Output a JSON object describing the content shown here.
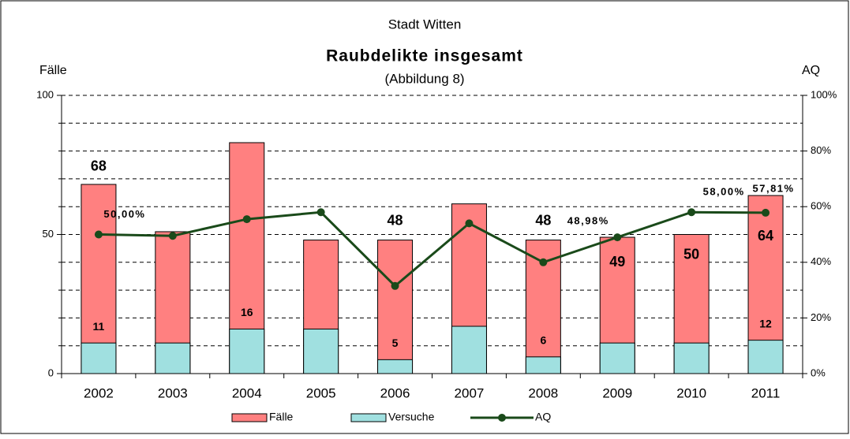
{
  "chart_data": {
    "type": "bar-line",
    "supertitle": "Stadt Witten",
    "title": "Raubdelikte insgesamt",
    "subtitle": "(Abbildung 8)",
    "ylabel": "Fälle",
    "y2label": "AQ",
    "categories": [
      "2002",
      "2003",
      "2004",
      "2005",
      "2006",
      "2007",
      "2008",
      "2009",
      "2010",
      "2011"
    ],
    "series": [
      {
        "name": "Fälle",
        "color": "#ff8080",
        "values": [
          68,
          51,
          83,
          48,
          48,
          61,
          48,
          49,
          50,
          64
        ],
        "value_labels": [
          "68",
          null,
          null,
          null,
          "48",
          null,
          "48",
          "49",
          "50",
          "64"
        ]
      },
      {
        "name": "Versuche",
        "color": "#a0e0e0",
        "values": [
          11,
          11,
          16,
          16,
          5,
          17,
          6,
          11,
          11,
          12
        ],
        "value_labels": [
          "11",
          null,
          "16",
          null,
          "5",
          null,
          "6",
          null,
          null,
          "12"
        ]
      },
      {
        "name": "AQ",
        "color": "#1a4a1a",
        "axis": "y2",
        "values": [
          50,
          49.5,
          55.5,
          58,
          31.5,
          54,
          40,
          48.98,
          58,
          57.81
        ],
        "value_labels": [
          "50,00%",
          null,
          null,
          null,
          null,
          null,
          null,
          "48,98%",
          "58,00%",
          "57,81%"
        ]
      }
    ],
    "overlap": true,
    "ylim": [
      0,
      100
    ],
    "yticks": [
      0,
      50,
      100
    ],
    "ygrid": [
      10,
      20,
      30,
      40,
      50,
      60,
      70,
      80,
      90
    ],
    "y2lim": [
      0,
      100
    ],
    "y2ticks": [
      {
        "value": 0,
        "label": "0%"
      },
      {
        "value": 20,
        "label": "20%"
      },
      {
        "value": 40,
        "label": "40%"
      },
      {
        "value": 60,
        "label": "60%"
      },
      {
        "value": 80,
        "label": "80%"
      },
      {
        "value": 100,
        "label": "100%"
      }
    ],
    "grid": true,
    "legend": "bottom"
  }
}
